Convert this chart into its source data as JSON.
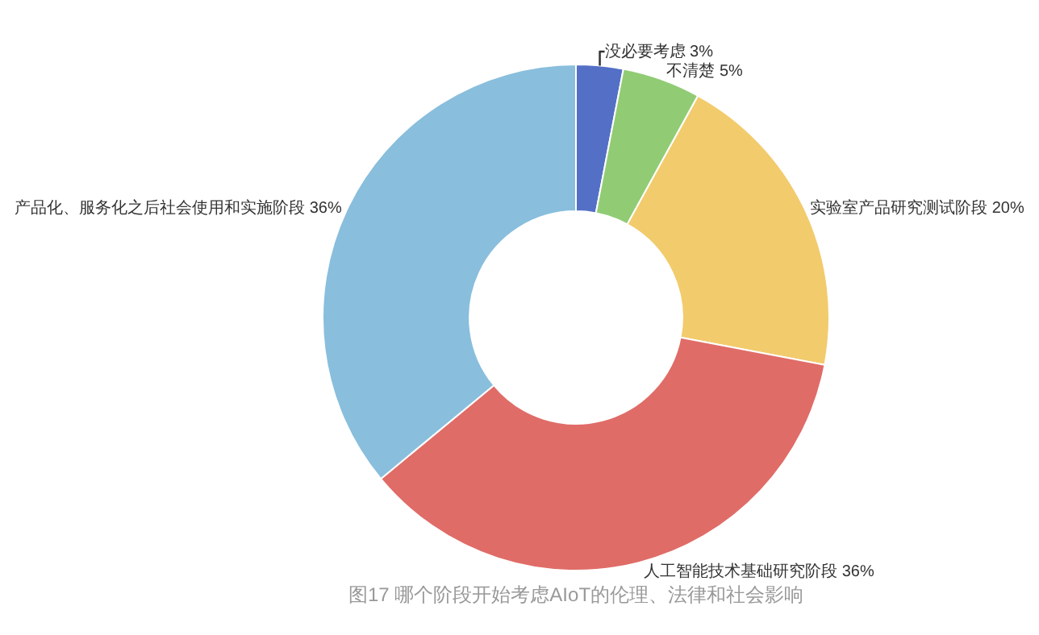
{
  "chart_data": {
    "type": "donut",
    "categories": [
      "没必要考虑",
      "不清楚",
      "实验室产品研究测试阶段",
      "人工智能技术基础研究阶段",
      "产品化、服务化之后社会使用和实施阶段"
    ],
    "values": [
      3,
      5,
      20,
      36,
      36
    ],
    "value_labels": [
      "3%",
      "5%",
      "20%",
      "36%",
      "36%"
    ],
    "colors": [
      "#5470c6",
      "#91cc75",
      "#f2cb6c",
      "#e06c67",
      "#89bedd"
    ],
    "annotations": [
      "图17 哪个阶段开始考虑AIoT的伦理、法律和社会影响"
    ],
    "legend": false
  }
}
